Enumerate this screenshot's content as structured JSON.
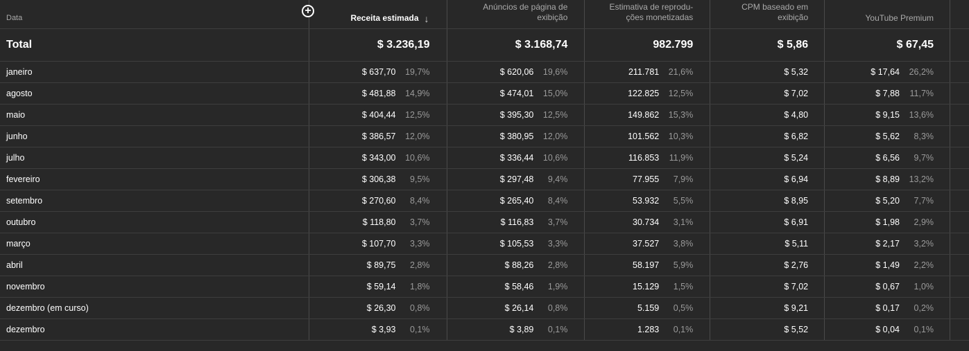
{
  "table": {
    "add_column_icon": "plus-circle-icon",
    "sort_icon": "arrow-down-icon",
    "headers": [
      "Data",
      "Receita estimada",
      "Anúncios de página de exibição",
      "Estimativa de reprodu-ções monetizadas",
      "CPM baseado em exibição",
      "YouTube Premium"
    ],
    "total": {
      "label": "Total",
      "receita": "$ 3.236,19",
      "anuncios": "$ 3.168,74",
      "reproducoes": "982.799",
      "cpm": "$ 5,86",
      "premium": "$ 67,45"
    },
    "rows": [
      {
        "date": "janeiro",
        "receita": "$ 637,70",
        "receita_pct": "19,7%",
        "anuncios": "$ 620,06",
        "anuncios_pct": "19,6%",
        "reproducoes": "211.781",
        "reproducoes_pct": "21,6%",
        "cpm": "$ 5,32",
        "premium": "$ 17,64",
        "premium_pct": "26,2%"
      },
      {
        "date": "agosto",
        "receita": "$ 481,88",
        "receita_pct": "14,9%",
        "anuncios": "$ 474,01",
        "anuncios_pct": "15,0%",
        "reproducoes": "122.825",
        "reproducoes_pct": "12,5%",
        "cpm": "$ 7,02",
        "premium": "$ 7,88",
        "premium_pct": "11,7%"
      },
      {
        "date": "maio",
        "receita": "$ 404,44",
        "receita_pct": "12,5%",
        "anuncios": "$ 395,30",
        "anuncios_pct": "12,5%",
        "reproducoes": "149.862",
        "reproducoes_pct": "15,3%",
        "cpm": "$ 4,80",
        "premium": "$ 9,15",
        "premium_pct": "13,6%"
      },
      {
        "date": "junho",
        "receita": "$ 386,57",
        "receita_pct": "12,0%",
        "anuncios": "$ 380,95",
        "anuncios_pct": "12,0%",
        "reproducoes": "101.562",
        "reproducoes_pct": "10,3%",
        "cpm": "$ 6,82",
        "premium": "$ 5,62",
        "premium_pct": "8,3%"
      },
      {
        "date": "julho",
        "receita": "$ 343,00",
        "receita_pct": "10,6%",
        "anuncios": "$ 336,44",
        "anuncios_pct": "10,6%",
        "reproducoes": "116.853",
        "reproducoes_pct": "11,9%",
        "cpm": "$ 5,24",
        "premium": "$ 6,56",
        "premium_pct": "9,7%"
      },
      {
        "date": "fevereiro",
        "receita": "$ 306,38",
        "receita_pct": "9,5%",
        "anuncios": "$ 297,48",
        "anuncios_pct": "9,4%",
        "reproducoes": "77.955",
        "reproducoes_pct": "7,9%",
        "cpm": "$ 6,94",
        "premium": "$ 8,89",
        "premium_pct": "13,2%"
      },
      {
        "date": "setembro",
        "receita": "$ 270,60",
        "receita_pct": "8,4%",
        "anuncios": "$ 265,40",
        "anuncios_pct": "8,4%",
        "reproducoes": "53.932",
        "reproducoes_pct": "5,5%",
        "cpm": "$ 8,95",
        "premium": "$ 5,20",
        "premium_pct": "7,7%"
      },
      {
        "date": "outubro",
        "receita": "$ 118,80",
        "receita_pct": "3,7%",
        "anuncios": "$ 116,83",
        "anuncios_pct": "3,7%",
        "reproducoes": "30.734",
        "reproducoes_pct": "3,1%",
        "cpm": "$ 6,91",
        "premium": "$ 1,98",
        "premium_pct": "2,9%"
      },
      {
        "date": "março",
        "receita": "$ 107,70",
        "receita_pct": "3,3%",
        "anuncios": "$ 105,53",
        "anuncios_pct": "3,3%",
        "reproducoes": "37.527",
        "reproducoes_pct": "3,8%",
        "cpm": "$ 5,11",
        "premium": "$ 2,17",
        "premium_pct": "3,2%"
      },
      {
        "date": "abril",
        "receita": "$ 89,75",
        "receita_pct": "2,8%",
        "anuncios": "$ 88,26",
        "anuncios_pct": "2,8%",
        "reproducoes": "58.197",
        "reproducoes_pct": "5,9%",
        "cpm": "$ 2,76",
        "premium": "$ 1,49",
        "premium_pct": "2,2%"
      },
      {
        "date": "novembro",
        "receita": "$ 59,14",
        "receita_pct": "1,8%",
        "anuncios": "$ 58,46",
        "anuncios_pct": "1,9%",
        "reproducoes": "15.129",
        "reproducoes_pct": "1,5%",
        "cpm": "$ 7,02",
        "premium": "$ 0,67",
        "premium_pct": "1,0%"
      },
      {
        "date": "dezembro (em curso)",
        "receita": "$ 26,30",
        "receita_pct": "0,8%",
        "anuncios": "$ 26,14",
        "anuncios_pct": "0,8%",
        "reproducoes": "5.159",
        "reproducoes_pct": "0,5%",
        "cpm": "$ 9,21",
        "premium": "$ 0,17",
        "premium_pct": "0,2%"
      },
      {
        "date": "dezembro",
        "receita": "$ 3,93",
        "receita_pct": "0,1%",
        "anuncios": "$ 3,89",
        "anuncios_pct": "0,1%",
        "reproducoes": "1.283",
        "reproducoes_pct": "0,1%",
        "cpm": "$ 5,52",
        "premium": "$ 0,04",
        "premium_pct": "0,1%"
      }
    ]
  }
}
